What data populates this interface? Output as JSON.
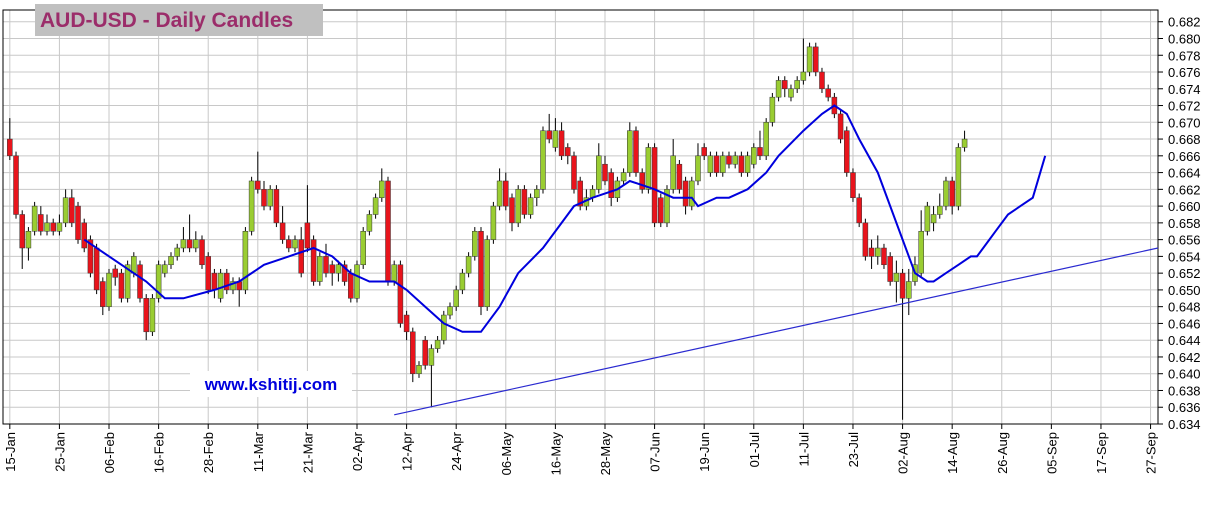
{
  "chart_data": {
    "type": "candlestick",
    "title": "AUD-USD - Daily Candles",
    "annotation": "www.kshitij.com",
    "up_color": "#9acd32",
    "down_color": "#e8141c",
    "grid": true,
    "xlim": [
      -1.1,
      185.2
    ],
    "xticks": [
      {
        "value": 0,
        "label": "15-Jan"
      },
      {
        "value": 8,
        "label": "25-Jan"
      },
      {
        "value": 16,
        "label": "06-Feb"
      },
      {
        "value": 24,
        "label": "16-Feb"
      },
      {
        "value": 32,
        "label": "28-Feb"
      },
      {
        "value": 40,
        "label": "11-Mar"
      },
      {
        "value": 48,
        "label": "21-Mar"
      },
      {
        "value": 56,
        "label": "02-Apr"
      },
      {
        "value": 64,
        "label": "12-Apr"
      },
      {
        "value": 72,
        "label": "24-Apr"
      },
      {
        "value": 80,
        "label": "06-May"
      },
      {
        "value": 88,
        "label": "16-May"
      },
      {
        "value": 96,
        "label": "28-May"
      },
      {
        "value": 104,
        "label": "07-Jun"
      },
      {
        "value": 112,
        "label": "19-Jun"
      },
      {
        "value": 120,
        "label": "01-Jul"
      },
      {
        "value": 128,
        "label": "11-Jul"
      },
      {
        "value": 136,
        "label": "23-Jul"
      },
      {
        "value": 144,
        "label": "02-Aug"
      },
      {
        "value": 152,
        "label": "14-Aug"
      },
      {
        "value": 160,
        "label": "26-Aug"
      },
      {
        "value": 168,
        "label": "05-Sep"
      },
      {
        "value": 176,
        "label": "17-Sep"
      },
      {
        "value": 184,
        "label": "27-Sep"
      }
    ],
    "ylim": [
      0.634,
      0.6834
    ],
    "yticks": [
      0.634,
      0.636,
      0.638,
      {
        "value": 0.64,
        "label": "0.640"
      },
      0.642,
      0.644,
      0.646,
      0.648,
      {
        "value": 0.65,
        "label": "0.650"
      },
      0.652,
      0.654,
      0.656,
      0.658,
      {
        "value": 0.66,
        "label": "0.660"
      },
      0.662,
      0.664,
      0.666,
      0.668,
      {
        "value": 0.67,
        "label": "0.670"
      },
      0.672,
      0.674,
      0.676,
      0.678,
      {
        "value": 0.68,
        "label": "0.680"
      },
      0.682
    ],
    "ohlc": [
      [
        0.668,
        0.6705,
        0.6655,
        0.666
      ],
      [
        0.666,
        0.6665,
        0.6585,
        0.659
      ],
      [
        0.659,
        0.6595,
        0.6525,
        0.655
      ],
      [
        0.655,
        0.6575,
        0.6535,
        0.657
      ],
      [
        0.657,
        0.6605,
        0.6565,
        0.66
      ],
      [
        0.659,
        0.66,
        0.6565,
        0.657
      ],
      [
        0.657,
        0.659,
        0.6565,
        0.658
      ],
      [
        0.658,
        0.6585,
        0.6565,
        0.657
      ],
      [
        0.657,
        0.659,
        0.6565,
        0.658
      ],
      [
        0.658,
        0.662,
        0.6575,
        0.661
      ],
      [
        0.661,
        0.662,
        0.6575,
        0.658
      ],
      [
        0.66,
        0.6605,
        0.6555,
        0.656
      ],
      [
        0.658,
        0.6585,
        0.6545,
        0.655
      ],
      [
        0.656,
        0.6565,
        0.6515,
        0.652
      ],
      [
        0.655,
        0.6555,
        0.6495,
        0.65
      ],
      [
        0.651,
        0.6515,
        0.647,
        0.648
      ],
      [
        0.648,
        0.6525,
        0.6475,
        0.652
      ],
      [
        0.6525,
        0.653,
        0.6505,
        0.6515
      ],
      [
        0.652,
        0.6525,
        0.6485,
        0.649
      ],
      [
        0.649,
        0.6535,
        0.6485,
        0.653
      ],
      [
        0.652,
        0.6545,
        0.6515,
        0.654
      ],
      [
        0.653,
        0.6535,
        0.6485,
        0.649
      ],
      [
        0.649,
        0.6495,
        0.644,
        0.645
      ],
      [
        0.645,
        0.6495,
        0.6445,
        0.649
      ],
      [
        0.649,
        0.6535,
        0.6485,
        0.653
      ],
      [
        0.652,
        0.6535,
        0.6515,
        0.653
      ],
      [
        0.653,
        0.6545,
        0.6525,
        0.654
      ],
      [
        0.654,
        0.6555,
        0.6535,
        0.655
      ],
      [
        0.655,
        0.6575,
        0.6545,
        0.656
      ],
      [
        0.656,
        0.659,
        0.6545,
        0.655
      ],
      [
        0.655,
        0.657,
        0.6545,
        0.656
      ],
      [
        0.656,
        0.6565,
        0.6525,
        0.653
      ],
      [
        0.654,
        0.6545,
        0.6495,
        0.65
      ],
      [
        0.652,
        0.6525,
        0.649,
        0.65
      ],
      [
        0.649,
        0.6525,
        0.6485,
        0.652
      ],
      [
        0.652,
        0.6525,
        0.6495,
        0.65
      ],
      [
        0.65,
        0.6515,
        0.6495,
        0.651
      ],
      [
        0.651,
        0.6515,
        0.648,
        0.65
      ],
      [
        0.65,
        0.6575,
        0.6495,
        0.657
      ],
      [
        0.657,
        0.6635,
        0.6565,
        0.663
      ],
      [
        0.663,
        0.6665,
        0.6615,
        0.662
      ],
      [
        0.662,
        0.663,
        0.6595,
        0.66
      ],
      [
        0.66,
        0.6625,
        0.6595,
        0.662
      ],
      [
        0.662,
        0.6625,
        0.6575,
        0.658
      ],
      [
        0.658,
        0.66,
        0.6555,
        0.656
      ],
      [
        0.656,
        0.6565,
        0.6545,
        0.655
      ],
      [
        0.655,
        0.6565,
        0.6545,
        0.656
      ],
      [
        0.656,
        0.6575,
        0.6515,
        0.652
      ],
      [
        0.658,
        0.6625,
        0.6545,
        0.655
      ],
      [
        0.656,
        0.6565,
        0.6505,
        0.651
      ],
      [
        0.651,
        0.6545,
        0.6505,
        0.654
      ],
      [
        0.654,
        0.6555,
        0.6515,
        0.652
      ],
      [
        0.653,
        0.6535,
        0.6505,
        0.652
      ],
      [
        0.652,
        0.6535,
        0.651,
        0.653
      ],
      [
        0.653,
        0.6535,
        0.6505,
        0.651
      ],
      [
        0.652,
        0.6525,
        0.6485,
        0.649
      ],
      [
        0.649,
        0.6535,
        0.6485,
        0.653
      ],
      [
        0.653,
        0.6575,
        0.6525,
        0.657
      ],
      [
        0.657,
        0.6595,
        0.6565,
        0.659
      ],
      [
        0.659,
        0.6615,
        0.6585,
        0.661
      ],
      [
        0.661,
        0.6645,
        0.6605,
        0.663
      ],
      [
        0.663,
        0.6635,
        0.6505,
        0.651
      ],
      [
        0.651,
        0.6535,
        0.6505,
        0.653
      ],
      [
        0.653,
        0.6535,
        0.6455,
        0.646
      ],
      [
        0.647,
        0.6475,
        0.644,
        0.645
      ],
      [
        0.645,
        0.6455,
        0.639,
        0.64
      ],
      [
        0.64,
        0.6415,
        0.6395,
        0.641
      ],
      [
        0.644,
        0.6445,
        0.6405,
        0.641
      ],
      [
        0.641,
        0.6435,
        0.636,
        0.643
      ],
      [
        0.643,
        0.6445,
        0.6425,
        0.644
      ],
      [
        0.644,
        0.6475,
        0.6435,
        0.647
      ],
      [
        0.647,
        0.6485,
        0.6465,
        0.648
      ],
      [
        0.648,
        0.6505,
        0.6475,
        0.65
      ],
      [
        0.65,
        0.6525,
        0.6495,
        0.652
      ],
      [
        0.652,
        0.6545,
        0.6515,
        0.654
      ],
      [
        0.654,
        0.6575,
        0.6535,
        0.657
      ],
      [
        0.657,
        0.6575,
        0.647,
        0.648
      ],
      [
        0.648,
        0.6565,
        0.6475,
        0.656
      ],
      [
        0.656,
        0.6605,
        0.6555,
        0.66
      ],
      [
        0.66,
        0.6645,
        0.6595,
        0.663
      ],
      [
        0.663,
        0.664,
        0.6595,
        0.66
      ],
      [
        0.661,
        0.6615,
        0.657,
        0.658
      ],
      [
        0.658,
        0.6625,
        0.6575,
        0.662
      ],
      [
        0.662,
        0.6625,
        0.6585,
        0.659
      ],
      [
        0.659,
        0.6615,
        0.6585,
        0.661
      ],
      [
        0.661,
        0.6625,
        0.66,
        0.662
      ],
      [
        0.662,
        0.6695,
        0.6615,
        0.669
      ],
      [
        0.669,
        0.671,
        0.6675,
        0.668
      ],
      [
        0.667,
        0.6705,
        0.6665,
        0.669
      ],
      [
        0.669,
        0.67,
        0.6655,
        0.666
      ],
      [
        0.667,
        0.6675,
        0.665,
        0.666
      ],
      [
        0.666,
        0.6665,
        0.6615,
        0.662
      ],
      [
        0.663,
        0.6635,
        0.6595,
        0.66
      ],
      [
        0.66,
        0.662,
        0.6595,
        0.661
      ],
      [
        0.661,
        0.6625,
        0.6605,
        0.662
      ],
      [
        0.662,
        0.6675,
        0.6615,
        0.666
      ],
      [
        0.665,
        0.666,
        0.6625,
        0.663
      ],
      [
        0.664,
        0.6645,
        0.66,
        0.661
      ],
      [
        0.661,
        0.6635,
        0.6605,
        0.663
      ],
      [
        0.663,
        0.6645,
        0.6625,
        0.664
      ],
      [
        0.664,
        0.67,
        0.6635,
        0.669
      ],
      [
        0.669,
        0.6695,
        0.6635,
        0.664
      ],
      [
        0.664,
        0.6645,
        0.6615,
        0.662
      ],
      [
        0.662,
        0.6675,
        0.6615,
        0.667
      ],
      [
        0.667,
        0.6675,
        0.6575,
        0.658
      ],
      [
        0.661,
        0.6615,
        0.6575,
        0.658
      ],
      [
        0.658,
        0.6625,
        0.6575,
        0.662
      ],
      [
        0.662,
        0.668,
        0.6615,
        0.666
      ],
      [
        0.665,
        0.6655,
        0.6615,
        0.662
      ],
      [
        0.663,
        0.6635,
        0.659,
        0.66
      ],
      [
        0.66,
        0.6635,
        0.6595,
        0.663
      ],
      [
        0.663,
        0.6675,
        0.6625,
        0.666
      ],
      [
        0.667,
        0.6675,
        0.6655,
        0.666
      ],
      [
        0.664,
        0.6665,
        0.6635,
        0.666
      ],
      [
        0.666,
        0.6665,
        0.6635,
        0.664
      ],
      [
        0.664,
        0.6665,
        0.6635,
        0.666
      ],
      [
        0.666,
        0.6665,
        0.6645,
        0.665
      ],
      [
        0.665,
        0.6665,
        0.6645,
        0.666
      ],
      [
        0.666,
        0.6665,
        0.6635,
        0.664
      ],
      [
        0.664,
        0.6665,
        0.6635,
        0.666
      ],
      [
        0.665,
        0.6675,
        0.6645,
        0.667
      ],
      [
        0.667,
        0.669,
        0.6655,
        0.666
      ],
      [
        0.666,
        0.6705,
        0.6655,
        0.67
      ],
      [
        0.67,
        0.6735,
        0.6695,
        0.673
      ],
      [
        0.673,
        0.6755,
        0.6725,
        0.675
      ],
      [
        0.675,
        0.6755,
        0.673,
        0.674
      ],
      [
        0.673,
        0.6745,
        0.6725,
        0.674
      ],
      [
        0.674,
        0.6755,
        0.6735,
        0.675
      ],
      [
        0.675,
        0.68,
        0.6745,
        0.676
      ],
      [
        0.676,
        0.6795,
        0.6755,
        0.679
      ],
      [
        0.679,
        0.6795,
        0.6755,
        0.676
      ],
      [
        0.676,
        0.6765,
        0.6735,
        0.674
      ],
      [
        0.674,
        0.6745,
        0.6725,
        0.673
      ],
      [
        0.673,
        0.6735,
        0.6705,
        0.671
      ],
      [
        0.671,
        0.6715,
        0.6675,
        0.668
      ],
      [
        0.669,
        0.6695,
        0.6635,
        0.664
      ],
      [
        0.664,
        0.6645,
        0.6605,
        0.661
      ],
      [
        0.661,
        0.6615,
        0.6575,
        0.658
      ],
      [
        0.658,
        0.6585,
        0.6535,
        0.654
      ],
      [
        0.655,
        0.656,
        0.6525,
        0.654
      ],
      [
        0.654,
        0.6565,
        0.653,
        0.655
      ],
      [
        0.655,
        0.6555,
        0.6525,
        0.653
      ],
      [
        0.654,
        0.6545,
        0.6505,
        0.651
      ],
      [
        0.651,
        0.6535,
        0.6485,
        0.652
      ],
      [
        0.652,
        0.6525,
        0.6345,
        0.649
      ],
      [
        0.649,
        0.6525,
        0.647,
        0.651
      ],
      [
        0.651,
        0.654,
        0.6505,
        0.653
      ],
      [
        0.652,
        0.6595,
        0.6515,
        0.657
      ],
      [
        0.657,
        0.6605,
        0.6565,
        0.66
      ],
      [
        0.658,
        0.66,
        0.657,
        0.659
      ],
      [
        0.659,
        0.6615,
        0.6585,
        0.66
      ],
      [
        0.66,
        0.6635,
        0.6595,
        0.663
      ],
      [
        0.663,
        0.6635,
        0.659,
        0.66
      ],
      [
        0.66,
        0.6675,
        0.6595,
        0.667
      ],
      [
        0.667,
        0.669,
        0.6665,
        0.668
      ]
    ],
    "series": [
      {
        "color": "#0000dd",
        "x": [
          12,
          22,
          25,
          28,
          33,
          37,
          41,
          45,
          49,
          52,
          55,
          58,
          62,
          64,
          67,
          70,
          73,
          76,
          79,
          82,
          86,
          89,
          91,
          94,
          98,
          100,
          104,
          107,
          110,
          111,
          114,
          116,
          119,
          122,
          124,
          128,
          131,
          133,
          135,
          137,
          140,
          142,
          144,
          146,
          148,
          149,
          151,
          153,
          155,
          156,
          158,
          159,
          161,
          163,
          165,
          167
        ],
        "values": [
          0.656,
          0.651,
          0.649,
          0.649,
          0.65,
          0.651,
          0.653,
          0.654,
          0.655,
          0.654,
          0.652,
          0.651,
          0.651,
          0.65,
          0.648,
          0.646,
          0.645,
          0.645,
          0.648,
          0.652,
          0.655,
          0.658,
          0.66,
          0.661,
          0.662,
          0.663,
          0.662,
          0.661,
          0.661,
          0.66,
          0.661,
          0.661,
          0.662,
          0.664,
          0.666,
          0.669,
          0.671,
          0.672,
          0.671,
          0.668,
          0.664,
          0.66,
          0.656,
          0.652,
          0.651,
          0.651,
          0.652,
          0.653,
          0.654,
          0.654,
          0.656,
          0.657,
          0.659,
          0.66,
          0.661,
          0.666
        ]
      },
      {
        "color": "#2a2ad0",
        "x": [
          62,
          185.2
        ],
        "values": [
          0.6351,
          0.655
        ]
      }
    ]
  }
}
